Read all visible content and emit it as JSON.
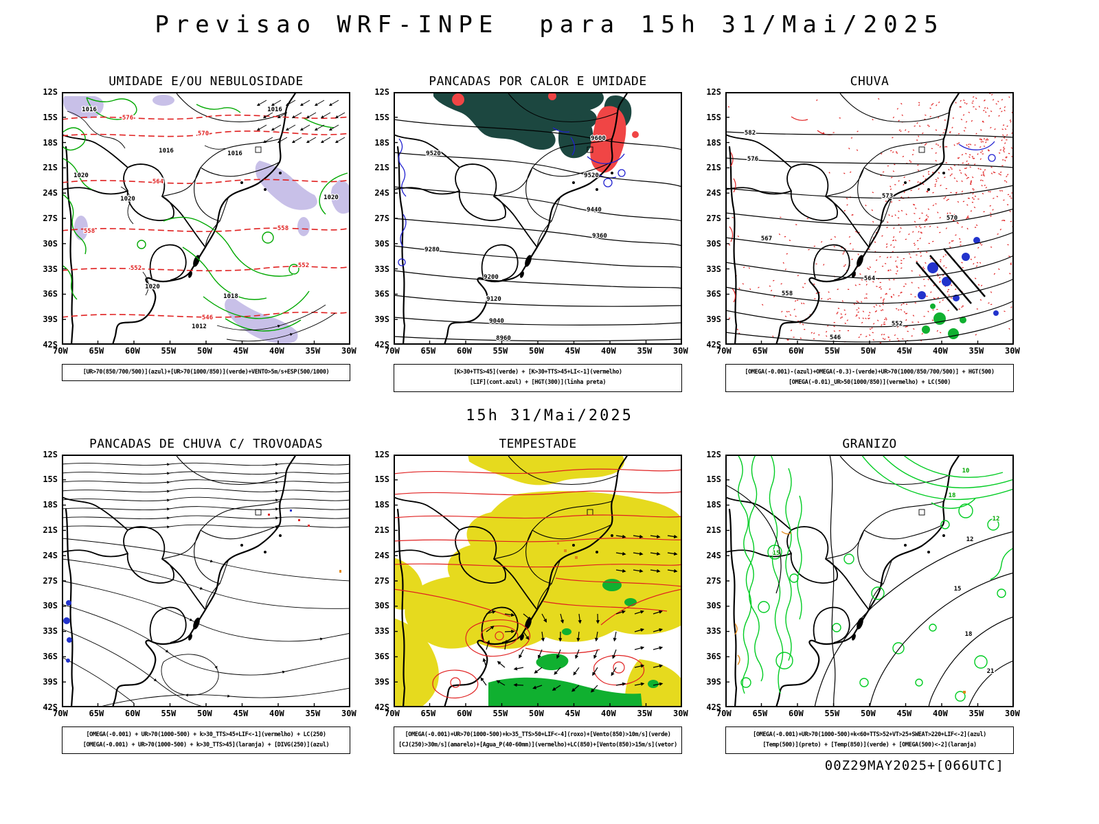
{
  "colors": {
    "humidity_green": "#00a800",
    "contour_red": "#e02020",
    "contour_blue": "#2020d0",
    "cloud_lavender": "#c8c0e8",
    "instability_teal": "#1c4740",
    "storm_yellow": "#e6da1e",
    "wind_green_fill": "#10b030",
    "hail_green": "#00cc22",
    "orange": "#e08818",
    "background": "#ffffff",
    "text": "#000000"
  },
  "header": {
    "title": "Previsao WRF-INPE  para 15h 31/Mai/2025"
  },
  "mid_label": "15h 31/Mai/2025",
  "footer": {
    "run_label": "00Z29MAY2025+[066UTC]"
  },
  "axes": {
    "lat_labels": [
      "12S",
      "15S",
      "18S",
      "21S",
      "24S",
      "27S",
      "30S",
      "33S",
      "36S",
      "39S",
      "42S"
    ],
    "lon_labels": [
      "70W",
      "65W",
      "60W",
      "55W",
      "50W",
      "45W",
      "40W",
      "35W",
      "30W"
    ]
  },
  "panels": [
    {
      "id": "umidade",
      "title": "UMIDADE E/OU NEBULOSIDADE",
      "caption_lines": [
        "[UR>70(850/700/500)](azul)+[UR>70(1000/850)](verde)+VENTO>5m/s+ESP(500/1000)"
      ],
      "contour_labels": {
        "black": [
          "1016",
          "1016",
          "1016",
          "1016",
          "1020",
          "1020",
          "1020",
          "1012",
          "1018",
          "1020"
        ],
        "red": [
          "576",
          "570",
          "564",
          "558",
          "558",
          "552",
          "552",
          "546"
        ]
      }
    },
    {
      "id": "pancadas",
      "title": "PANCADAS POR CALOR E UMIDADE",
      "caption_lines": [
        "[K>30+TTS>45](verde) + [K>30+TTS>45+LI<-1](vermelho)",
        "[LIF](cont.azul) + [HGT(300)](linha preta)"
      ],
      "contour_labels": {
        "black": [
          "9600",
          "9520",
          "9520",
          "9440",
          "9360",
          "9280",
          "9200",
          "9120",
          "9040",
          "8960"
        ]
      }
    },
    {
      "id": "chuva",
      "title": "CHUVA",
      "caption_lines": [
        "[OMEGA(-0.001)-(azul)+OMEGA(-0.3)-(verde)+UR>70(1000/850/700/500)] + HGT(500)",
        "[OMEGA(-0.01)_UR>50(1000/850)](vermelho) + LC(500)"
      ],
      "contour_labels": {
        "black": [
          "582",
          "576",
          "573",
          "570",
          "567",
          "564",
          "558",
          "552",
          "546"
        ]
      }
    },
    {
      "id": "trovoadas",
      "title": "PANCADAS DE CHUVA C/ TROVOADAS",
      "caption_lines": [
        "[OMEGA(-0.001) + UR>70(1000-500) + k>30_TTS>45+LIF<-1](vermelho) + LC(250)",
        "[OMEGA(-0.001) + UR>70(1000-500) + k>30_TTS>45](laranja) + [DIVG(250)](azul)"
      ],
      "contour_labels": {}
    },
    {
      "id": "tempestade",
      "title": "TEMPESTADE",
      "caption_lines": [
        "[OMEGA(-0.001)+UR>70(1000-500)+k>35_TTS>50+LIF<-4](roxo)+[Vento(850)>10m/s](verde)",
        "[CJ(250)>30m/s](amarelo)+[Agua_P(40-60mm)](vermelho)+LC(850)+[Vento(850)>15m/s](vetor)"
      ],
      "contour_labels": {}
    },
    {
      "id": "granizo",
      "title": "GRANIZO",
      "caption_lines": [
        "[OMEGA(-0.001)+UR>70(1000-500)+k<60+TTS>52+VT>25+SWEAT>220+LIF<-2](azul)",
        "[Temp(500)](preto) + [Temp(850)](verde) + [OMEGA(500)<-2](laranja)"
      ],
      "contour_labels": {
        "black": [
          "12",
          "15",
          "18",
          "21"
        ],
        "green": [
          "18",
          "12",
          "10",
          "15"
        ]
      }
    }
  ]
}
